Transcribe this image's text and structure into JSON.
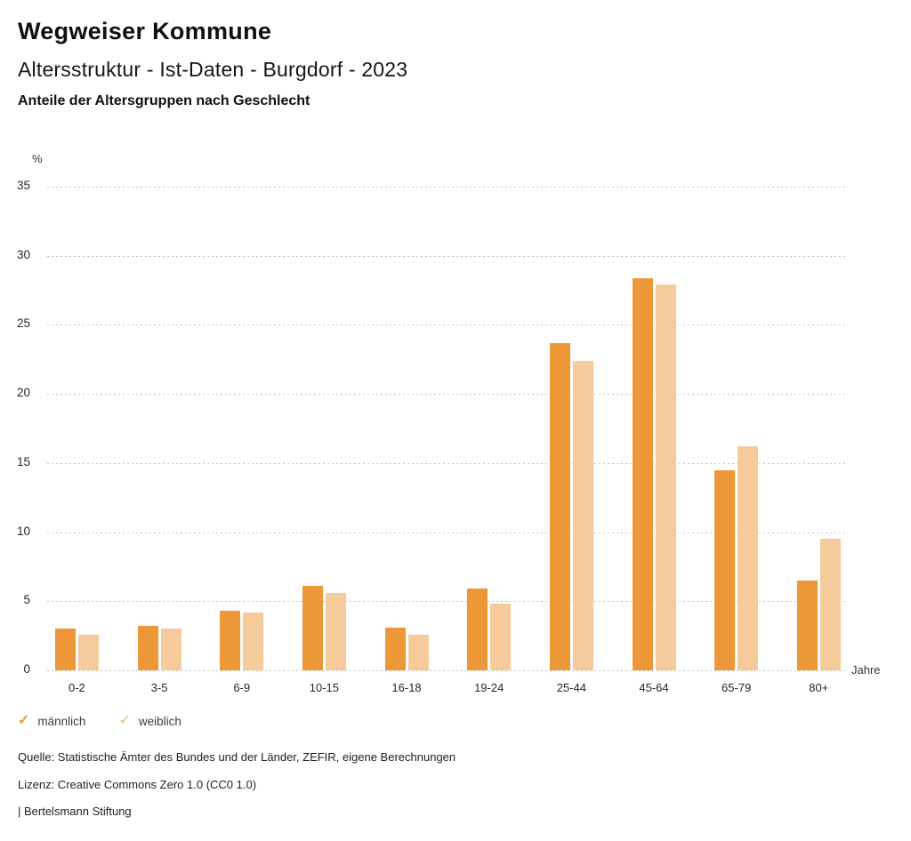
{
  "header": {
    "title": "Wegweiser Kommune",
    "subtitle": "Altersstruktur - Ist-Daten - Burgdorf - 2023",
    "description": "Anteile der Altersgruppen nach Geschlecht"
  },
  "chart_data": {
    "type": "bar",
    "title": "Anteile der Altersgruppen nach Geschlecht",
    "categories": [
      "0-2",
      "3-5",
      "6-9",
      "10-15",
      "16-18",
      "19-24",
      "25-44",
      "45-64",
      "65-79",
      "80+"
    ],
    "series": [
      {
        "key": "maennlich",
        "name": "männlich",
        "color": "#ed9838",
        "values": [
          3.0,
          3.2,
          4.3,
          6.1,
          3.1,
          5.9,
          23.7,
          28.4,
          14.5,
          6.5
        ]
      },
      {
        "key": "weiblich",
        "name": "weiblich",
        "color": "#f5cb9c",
        "values": [
          2.6,
          3.0,
          4.2,
          5.6,
          2.6,
          4.8,
          22.4,
          27.9,
          16.2,
          9.5
        ]
      }
    ],
    "xlabel": "Jahre",
    "ylabel": "%",
    "ylim": [
      0,
      35
    ],
    "yticks": [
      0,
      5,
      10,
      15,
      20,
      25,
      30,
      35
    ],
    "grid": "horizontal-dotted",
    "legend_position": "bottom-left"
  },
  "legend": {
    "marker": "✓",
    "items": [
      {
        "label": "männlich"
      },
      {
        "label": "weiblich"
      }
    ]
  },
  "footer": {
    "source": "Quelle: Statistische Ämter des Bundes und der Länder, ZEFIR, eigene Berechnungen",
    "license": "Lizenz: Creative Commons Zero 1.0 (CC0 1.0)",
    "attribution": "| Bertelsmann Stiftung"
  }
}
